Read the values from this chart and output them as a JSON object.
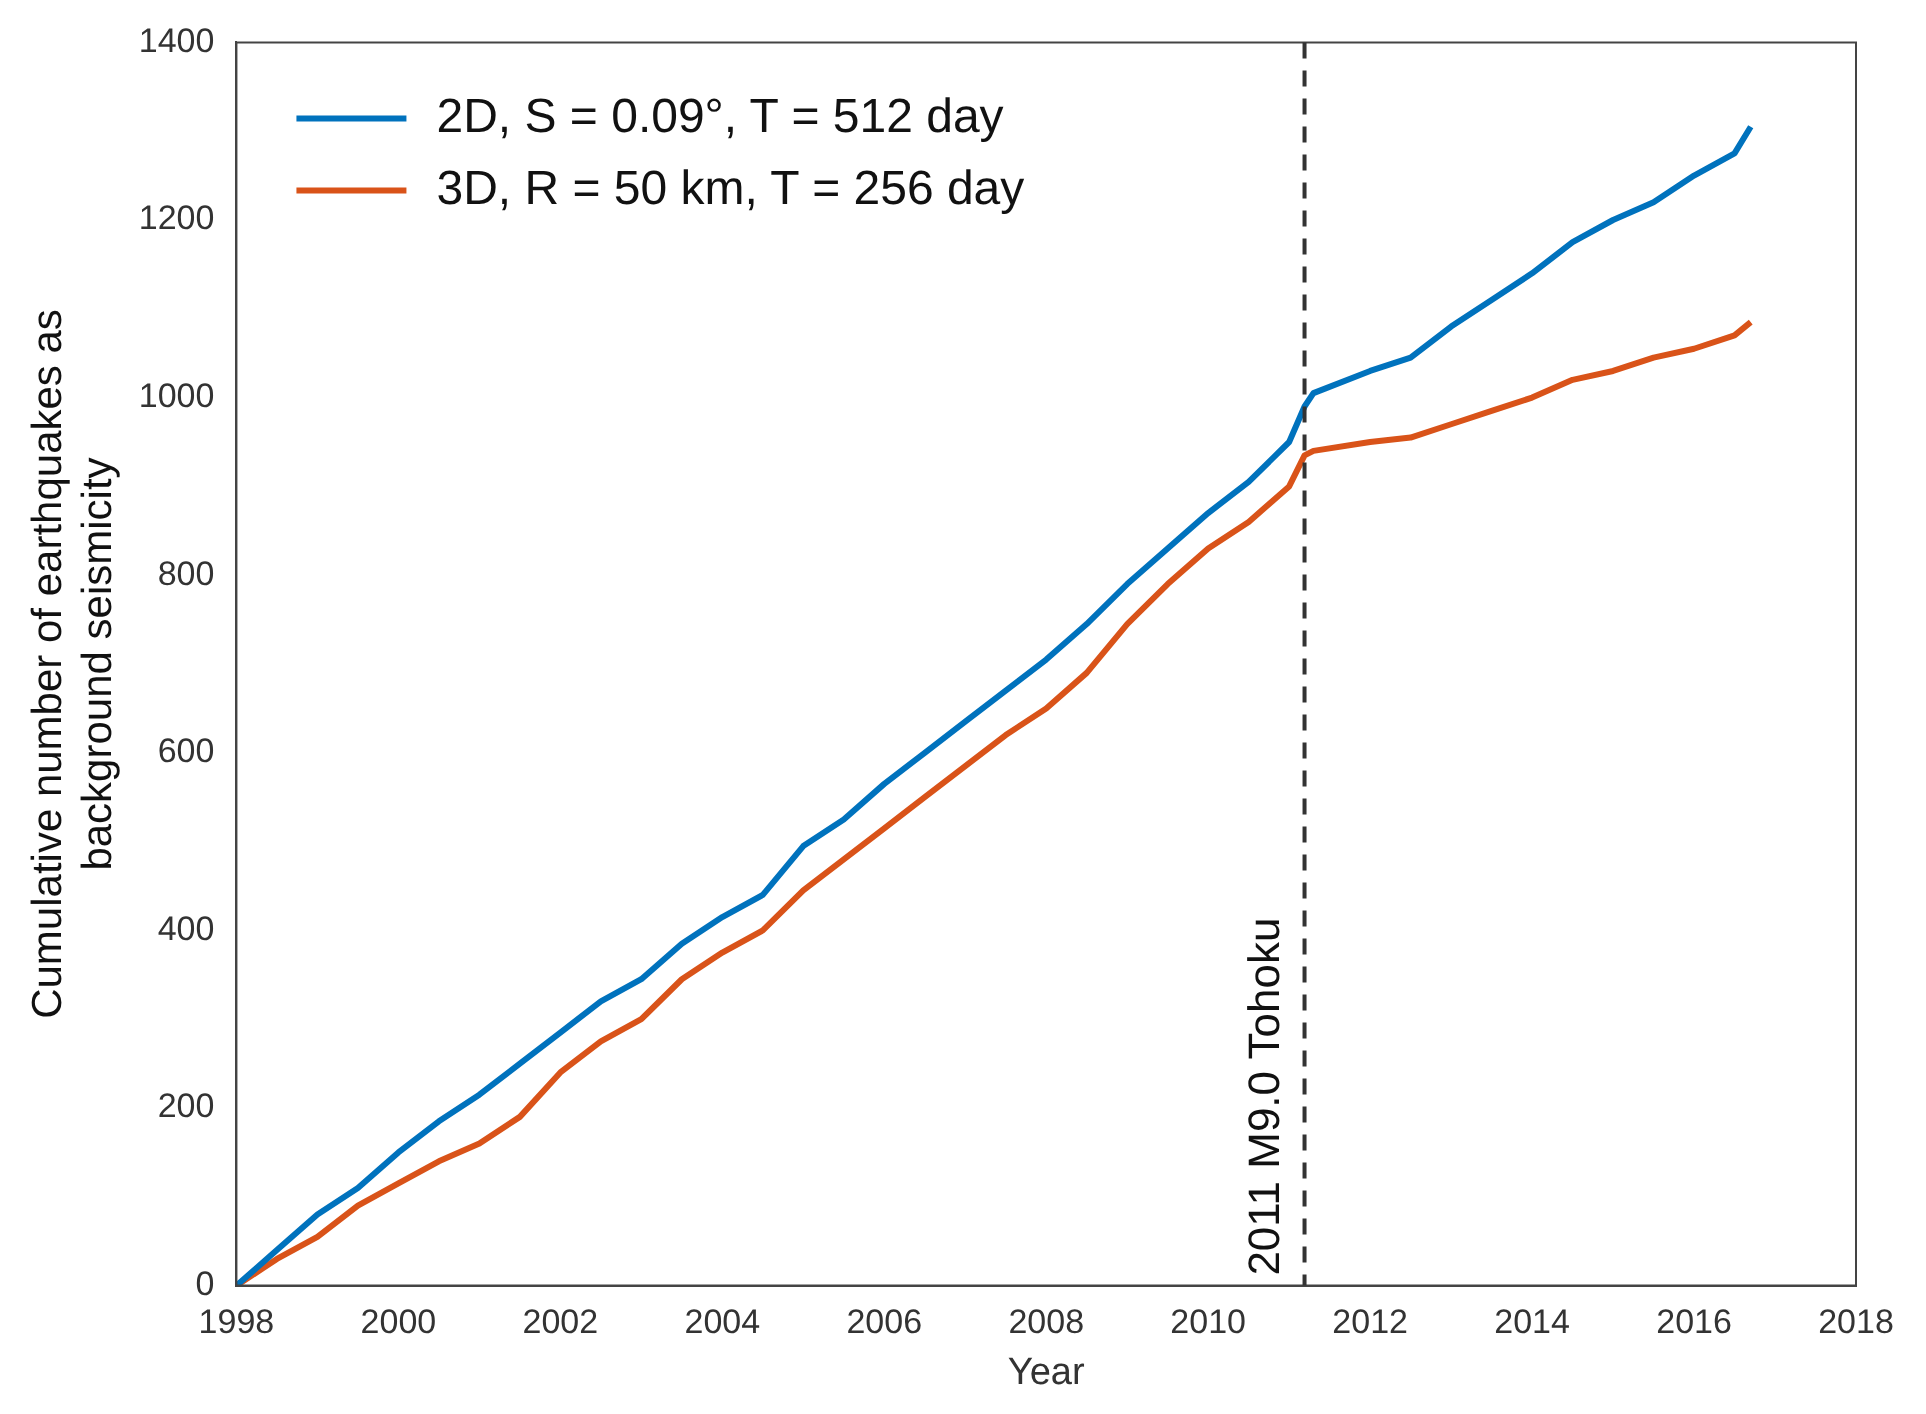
{
  "chart_data": {
    "type": "line",
    "xlabel": "Year",
    "ylabel": "Cumulative number of earthquakes as background seismicity",
    "xlim": [
      1998,
      2018
    ],
    "xticks": [
      1998,
      2000,
      2002,
      2004,
      2006,
      2008,
      2010,
      2012,
      2014,
      2016,
      2018
    ],
    "ylim": [
      0,
      1400
    ],
    "yticks": [
      0,
      200,
      400,
      600,
      800,
      1000,
      1200,
      1400
    ],
    "grid": false,
    "legend": "top left",
    "marker": "none",
    "line_style": "solid",
    "series": [
      {
        "name": "2D, S = 0.09°, T = 512 day",
        "color": "#0072bd",
        "x": [
          1998,
          1998.5,
          1999,
          1999.5,
          2000,
          2000.5,
          2001,
          2001.5,
          2002,
          2002.5,
          2003,
          2003.5,
          2004,
          2004.5,
          2005,
          2005.5,
          2006,
          2006.5,
          2007,
          2007.5,
          2008,
          2008.5,
          2009,
          2009.5,
          2010,
          2010.5,
          2011,
          2011.19,
          2011.3,
          2012,
          2012.5,
          2013,
          2013.5,
          2014,
          2014.5,
          2015,
          2015.5,
          2016,
          2016.5,
          2016.7
        ],
        "values": [
          0,
          40,
          80,
          110,
          150,
          185,
          215,
          250,
          285,
          320,
          345,
          385,
          415,
          440,
          495,
          525,
          565,
          600,
          635,
          670,
          705,
          745,
          790,
          830,
          870,
          905,
          950,
          990,
          1005,
          1030,
          1045,
          1080,
          1110,
          1140,
          1175,
          1200,
          1220,
          1250,
          1275,
          1305
        ]
      },
      {
        "name": "3D, R = 50 km, T = 256 day",
        "color": "#d95319",
        "x": [
          1998,
          1998.5,
          1999,
          1999.5,
          2000,
          2000.5,
          2001,
          2001.5,
          2002,
          2002.5,
          2003,
          2003.5,
          2004,
          2004.5,
          2005,
          2005.5,
          2006,
          2006.5,
          2007,
          2007.5,
          2008,
          2008.5,
          2009,
          2009.5,
          2010,
          2010.5,
          2011,
          2011.19,
          2011.3,
          2012,
          2012.5,
          2013,
          2013.5,
          2014,
          2014.5,
          2015,
          2015.5,
          2016,
          2016.5,
          2016.7
        ],
        "values": [
          0,
          30,
          55,
          90,
          115,
          140,
          160,
          190,
          240,
          275,
          300,
          345,
          375,
          400,
          445,
          480,
          515,
          550,
          585,
          620,
          650,
          690,
          745,
          790,
          830,
          860,
          900,
          935,
          940,
          950,
          955,
          970,
          985,
          1000,
          1020,
          1030,
          1045,
          1055,
          1070,
          1085
        ]
      }
    ],
    "ref_lines": [
      {
        "axis": "x",
        "value": 2011.19,
        "label": "2011 M9.0 Tohoku",
        "color": "#333333",
        "line_style": "dashed"
      }
    ]
  }
}
